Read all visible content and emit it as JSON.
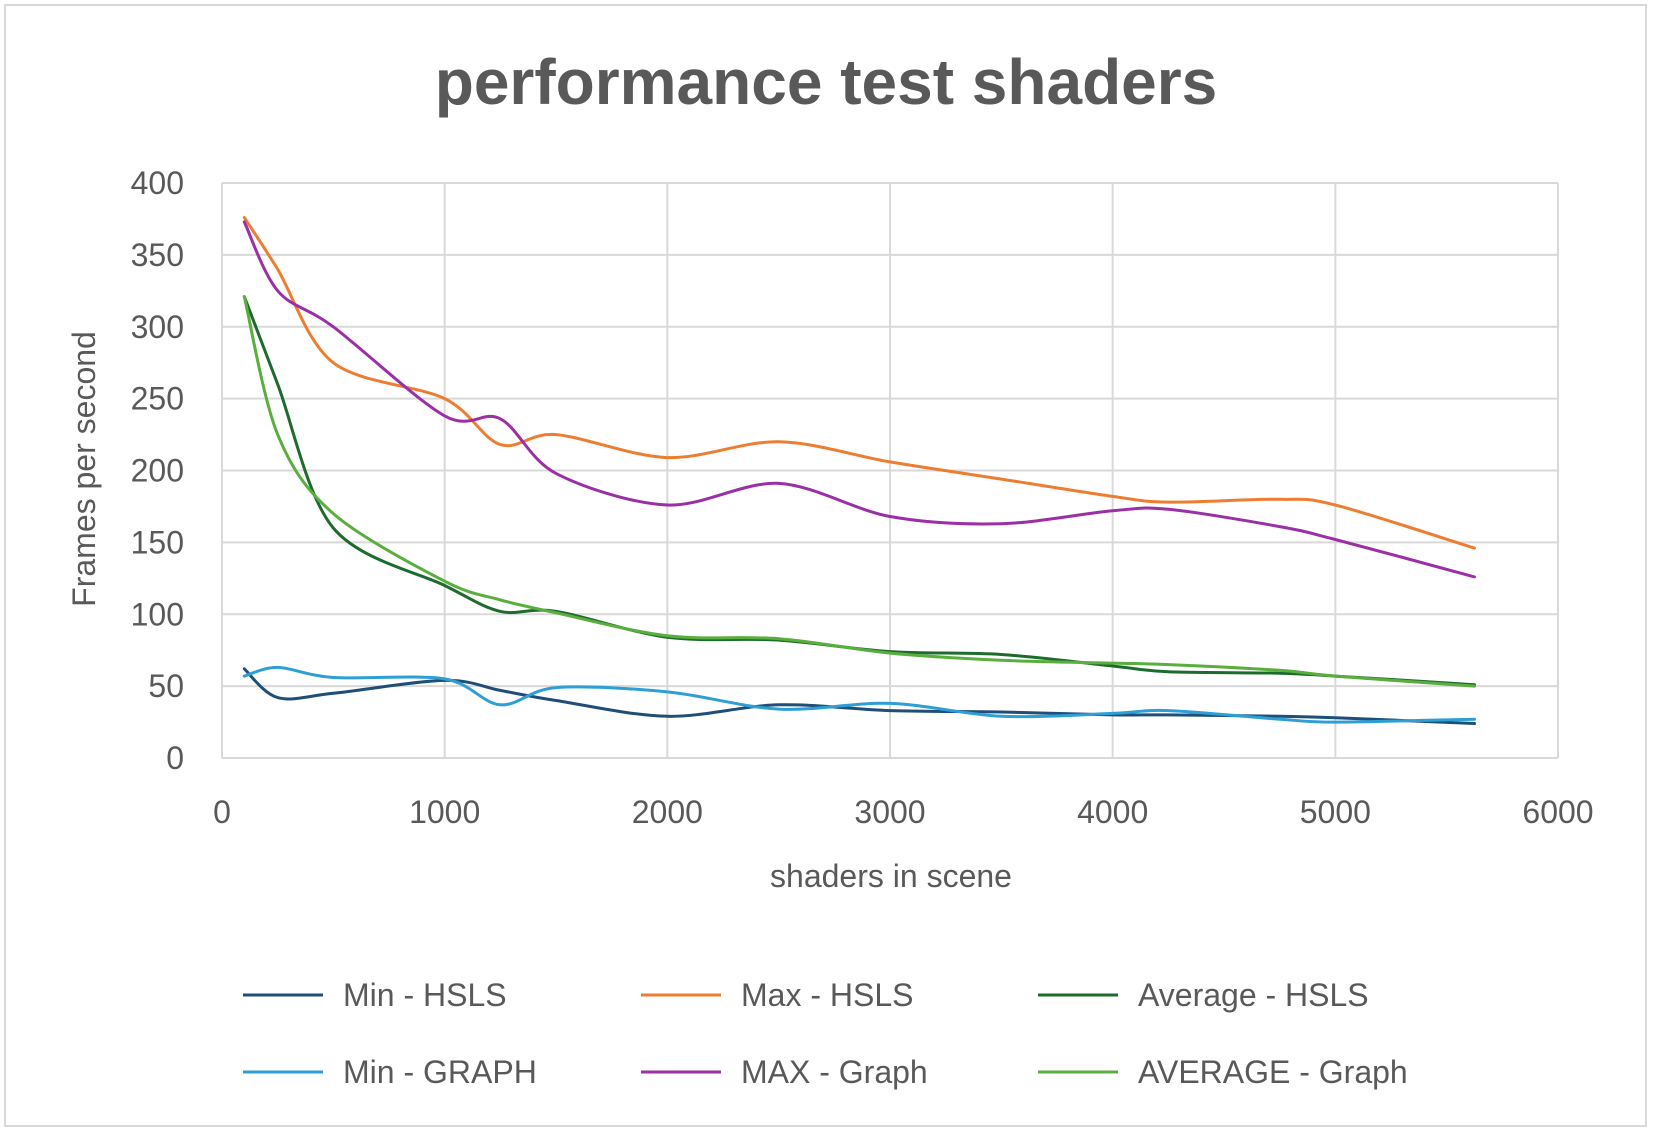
{
  "chart_data": {
    "type": "line",
    "title": "performance test shaders",
    "xlabel": "shaders in scene",
    "ylabel": "Frames per second",
    "xlim": [
      0,
      6000
    ],
    "ylim": [
      0,
      400
    ],
    "xticks": [
      "0",
      "1000",
      "2000",
      "3000",
      "4000",
      "5000",
      "6000"
    ],
    "yticks": [
      "0",
      "50",
      "100",
      "150",
      "200",
      "250",
      "300",
      "350",
      "400"
    ],
    "grid": true,
    "legend_position": "bottom",
    "x": [
      100,
      250,
      500,
      1000,
      1250,
      1500,
      2000,
      2500,
      3000,
      3500,
      4000,
      4250,
      4750,
      5000,
      5625
    ],
    "series": [
      {
        "name": "Min - HSLS",
        "color": "#1f4e79",
        "values": [
          62,
          42,
          45,
          54,
          47,
          40,
          29,
          37,
          33,
          32,
          30,
          30,
          29,
          28,
          24
        ]
      },
      {
        "name": "Max - HSLS",
        "color": "#ed7d31",
        "values": [
          376,
          340,
          275,
          250,
          218,
          225,
          209,
          220,
          206,
          194,
          182,
          178,
          180,
          176,
          146
        ]
      },
      {
        "name": "Average - HSLS",
        "color": "#1e6b2e",
        "values": [
          321,
          260,
          160,
          120,
          102,
          102,
          84,
          82,
          74,
          72,
          64,
          60,
          59,
          57,
          51
        ]
      },
      {
        "name": "Min - GRAPH",
        "color": "#2e9fd4",
        "values": [
          57,
          63,
          56,
          55,
          37,
          49,
          46,
          34,
          38,
          29,
          31,
          33,
          27,
          25,
          27
        ]
      },
      {
        "name": "MAX - Graph",
        "color": "#9b2fa6",
        "values": [
          373,
          325,
          300,
          238,
          236,
          198,
          176,
          191,
          168,
          163,
          172,
          173,
          161,
          152,
          126
        ]
      },
      {
        "name": "AVERAGE - Graph",
        "color": "#5aae3d",
        "values": [
          321,
          225,
          170,
          123,
          110,
          101,
          85,
          83,
          73,
          68,
          66,
          65,
          61,
          57,
          50
        ]
      }
    ]
  }
}
